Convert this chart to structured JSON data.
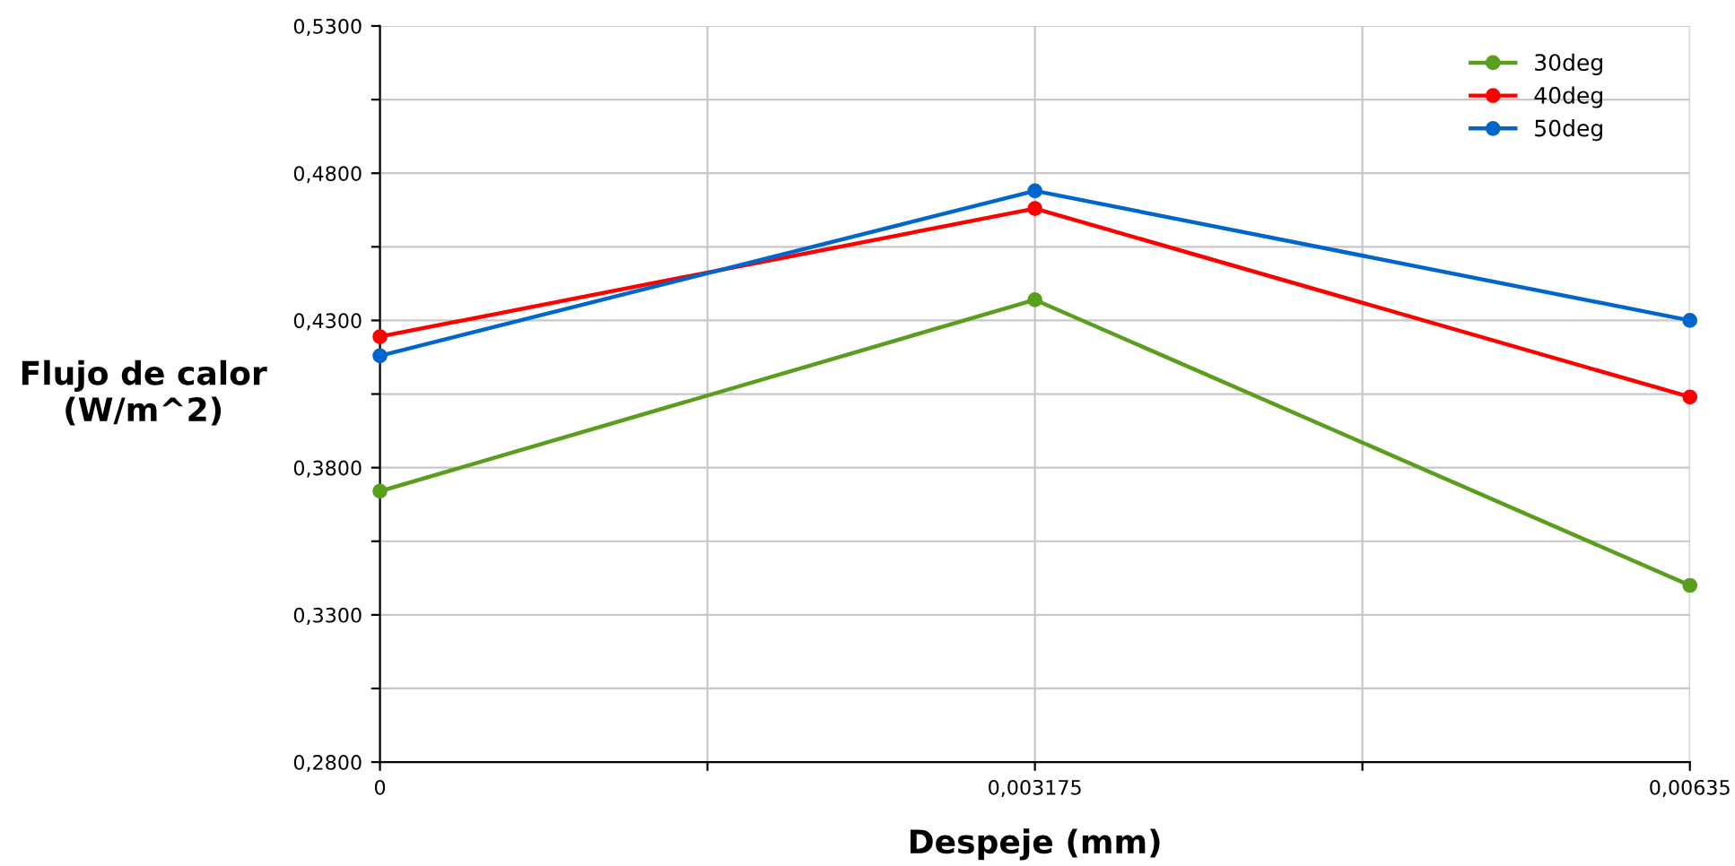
{
  "chart_data": {
    "type": "line",
    "xlabel": "Despeje (mm)",
    "ylabel": "Flujo de calor\n(W/m^2)",
    "x": [
      0,
      0.003175,
      0.00635
    ],
    "series": [
      {
        "name": "30deg",
        "color": "#5a9e1e",
        "values": [
          0.372,
          0.437,
          0.34
        ]
      },
      {
        "name": "40deg",
        "color": "#ff0000",
        "values": [
          0.4245,
          0.468,
          0.404
        ]
      },
      {
        "name": "50deg",
        "color": "#0066cc",
        "values": [
          0.418,
          0.474,
          0.43
        ]
      }
    ],
    "xlim": [
      0,
      0.00635
    ],
    "xticks": [
      {
        "value": 0,
        "label": "0"
      },
      {
        "value": 0.003175,
        "label": "0,003175"
      },
      {
        "value": 0.00635,
        "label": "0,00635"
      },
      {
        "value": 0.0015875,
        "label": null
      },
      {
        "value": 0.0047625,
        "label": null
      }
    ],
    "ylim": [
      0.28,
      0.53
    ],
    "yticks": [
      {
        "value": 0.28,
        "label": "0,2800"
      },
      {
        "value": 0.305,
        "label": null
      },
      {
        "value": 0.33,
        "label": "0,3300"
      },
      {
        "value": 0.355,
        "label": null
      },
      {
        "value": 0.38,
        "label": "0,3800"
      },
      {
        "value": 0.405,
        "label": null
      },
      {
        "value": 0.43,
        "label": "0,4300"
      },
      {
        "value": 0.455,
        "label": null
      },
      {
        "value": 0.48,
        "label": "0,4800"
      },
      {
        "value": 0.505,
        "label": null
      },
      {
        "value": 0.53,
        "label": "0,5300"
      }
    ],
    "grid": true,
    "legend": "top right",
    "marker": "circle",
    "line_style": "solid"
  }
}
